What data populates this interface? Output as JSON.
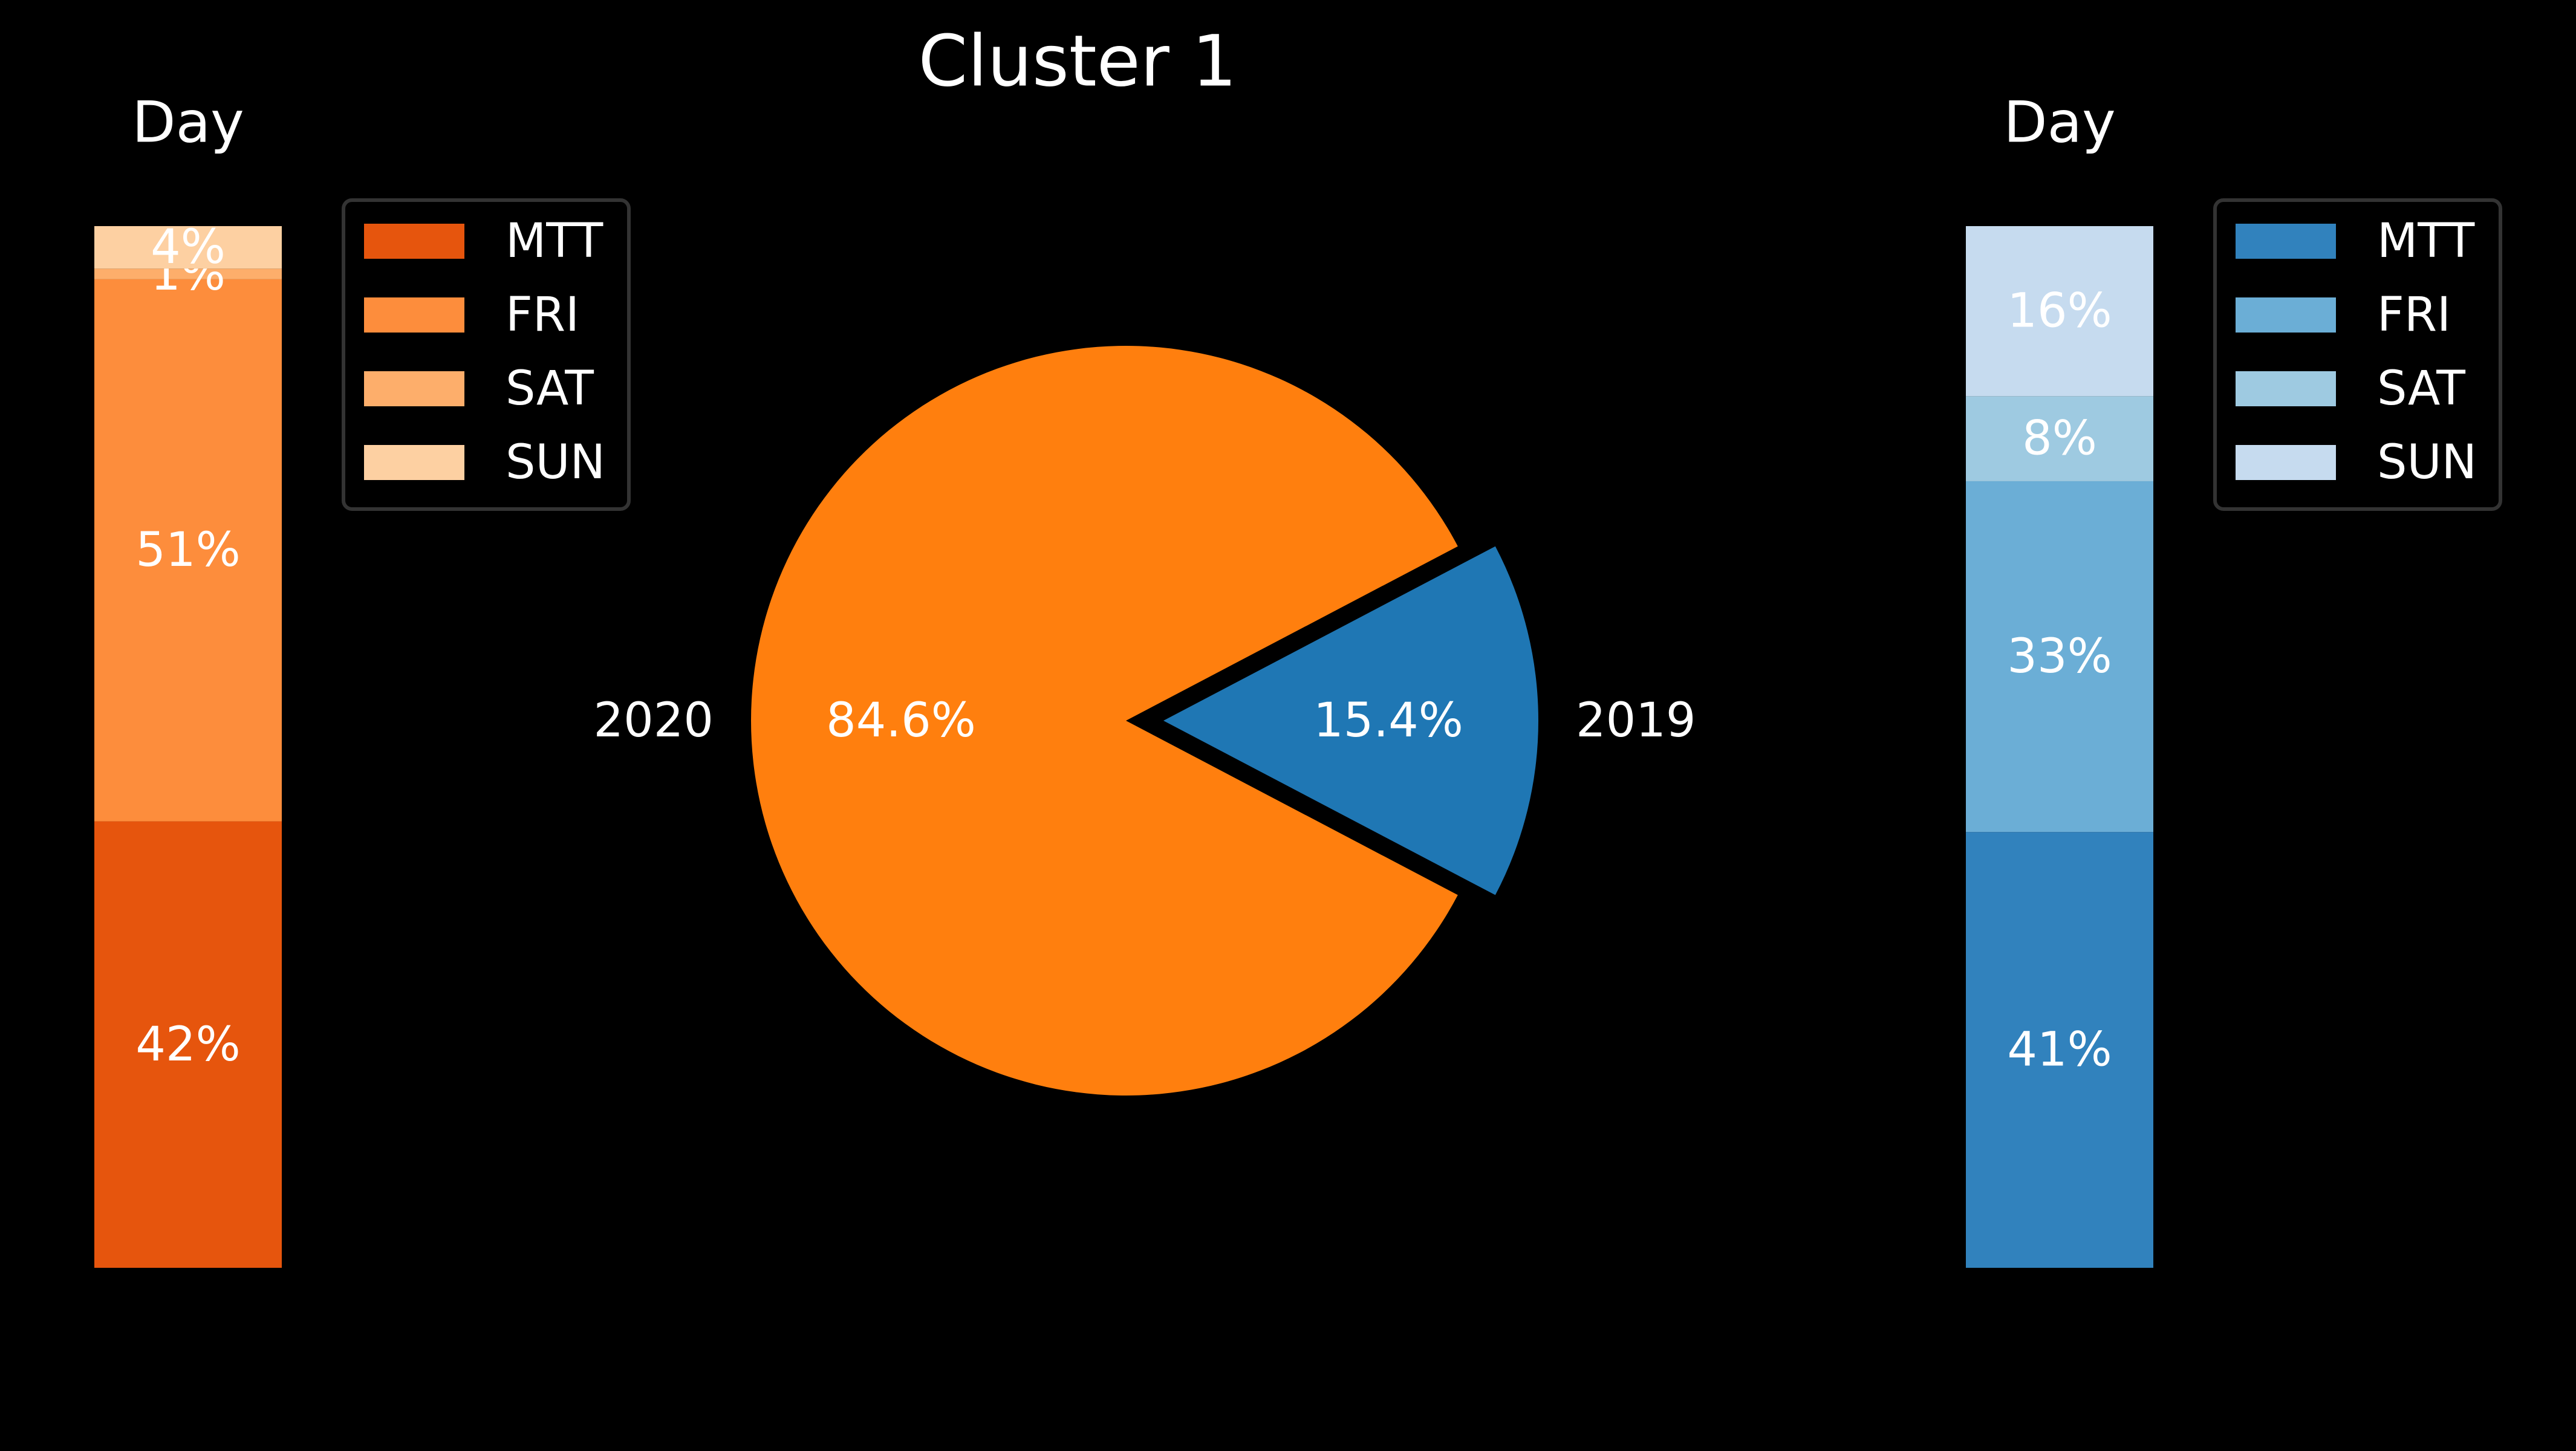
{
  "chart_data": [
    {
      "type": "pie",
      "title": "Cluster 1",
      "slices": [
        {
          "label": "2020",
          "value": 84.6,
          "pct_label": "84.6%",
          "color": "#ff7f0e",
          "exploded": false
        },
        {
          "label": "2019",
          "value": 15.4,
          "pct_label": "15.4%",
          "color": "#1f77b4",
          "exploded": true
        }
      ]
    },
    {
      "type": "bar",
      "stacked": true,
      "title": "Day",
      "series": [
        {
          "name": "MTT",
          "value": 42,
          "label": "42%",
          "color": "#e6550d"
        },
        {
          "name": "FRI",
          "value": 51,
          "label": "51%",
          "color": "#fd8d3c"
        },
        {
          "name": "SAT",
          "value": 1,
          "label": "1%",
          "color": "#fdae6b"
        },
        {
          "name": "SUN",
          "value": 4,
          "label": "4%",
          "color": "#fdd0a2"
        }
      ],
      "legend": "upper-right"
    },
    {
      "type": "bar",
      "stacked": true,
      "title": "Day",
      "series": [
        {
          "name": "MTT",
          "value": 41,
          "label": "41%",
          "color": "#3182bd"
        },
        {
          "name": "FRI",
          "value": 33,
          "label": "33%",
          "color": "#6baed6"
        },
        {
          "name": "SAT",
          "value": 8,
          "label": "8%",
          "color": "#9ecae1"
        },
        {
          "name": "SUN",
          "value": 16,
          "label": "16%",
          "color": "#c6dbef"
        }
      ],
      "legend": "upper-right"
    }
  ]
}
